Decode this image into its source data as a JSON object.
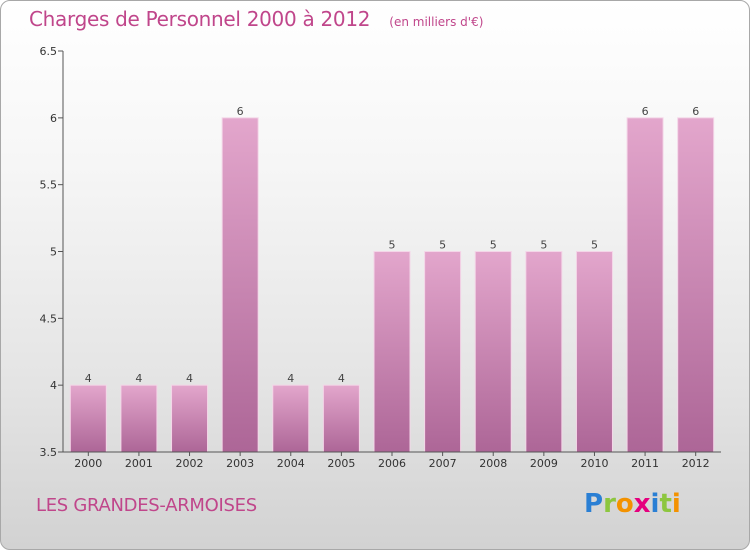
{
  "header": {
    "title": "Charges de Personnel 2000 à 2012",
    "subtitle": "(en milliers d'€)"
  },
  "footer": {
    "commune": "LES GRANDES-ARMOISES",
    "logo_letters": [
      "P",
      "r",
      "o",
      "x",
      "i",
      "t",
      "i"
    ],
    "logo_colors": [
      "#2a7fd4",
      "#8dc63f",
      "#f39200",
      "#e5007e",
      "#2a7fd4",
      "#8dc63f",
      "#f39200"
    ]
  },
  "colors": {
    "bar_top": "#e3a6cc",
    "bar_bottom": "#ad6697",
    "axis": "#555555",
    "grid": "#cccccc"
  },
  "chart_data": {
    "type": "bar",
    "title": "Charges de Personnel 2000 à 2012",
    "subtitle": "(en milliers d'€)",
    "categories": [
      "2000",
      "2001",
      "2002",
      "2003",
      "2004",
      "2005",
      "2006",
      "2007",
      "2008",
      "2009",
      "2010",
      "2011",
      "2012"
    ],
    "values": [
      4,
      4,
      4,
      6,
      4,
      4,
      5,
      5,
      5,
      5,
      5,
      6,
      6
    ],
    "ylim": [
      3.5,
      6.5
    ],
    "yticks": [
      3.5,
      4,
      4.5,
      5,
      5.5,
      6,
      6.5
    ],
    "ytick_labels": [
      "3.5",
      "4",
      "4.5",
      "5",
      "5.5",
      "6",
      "6.5"
    ],
    "grid": false,
    "legend": "none"
  }
}
